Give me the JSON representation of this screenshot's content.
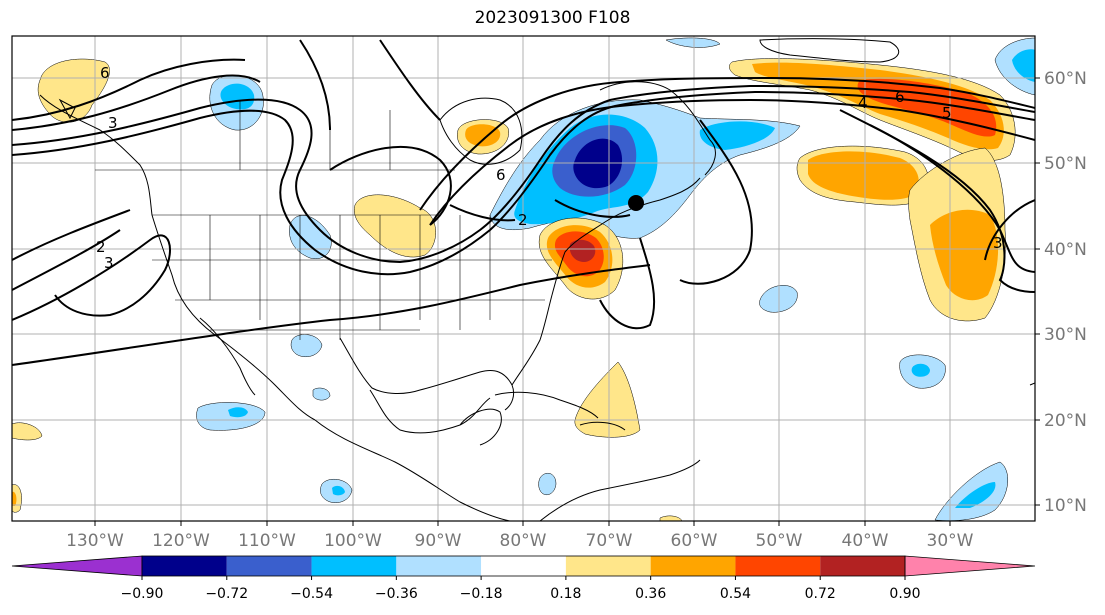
{
  "title": "2023091300 F108",
  "map": {
    "lon_labels": [
      "130°W",
      "120°W",
      "110°W",
      "100°W",
      "90°W",
      "80°W",
      "70°W",
      "60°W",
      "50°W",
      "40°W",
      "30°W"
    ],
    "lat_labels": [
      "60°N",
      "50°N",
      "40°N",
      "30°N",
      "20°N",
      "10°N"
    ],
    "lon_range": [
      -140,
      -20
    ],
    "lat_range": [
      8,
      65
    ],
    "grid": true
  },
  "colorbar": {
    "labels": [
      "−0.90",
      "−0.72",
      "−0.54",
      "−0.36",
      "−0.18",
      "0.18",
      "0.36",
      "0.54",
      "0.72",
      "0.90"
    ],
    "colors": [
      "#9b30d0",
      "#00008b",
      "#3a5fcd",
      "#00bfff",
      "#b0e0ff",
      "#ffffff",
      "#ffe68a",
      "#ffa500",
      "#ff4500",
      "#b22222",
      "#ff82ab"
    ],
    "extend": "both"
  },
  "contour_labels": [
    "6",
    "3",
    "2",
    "3",
    "6",
    "2",
    "6",
    "4",
    "5",
    "3"
  ],
  "marker": {
    "lon": -67,
    "lat": 45.5
  },
  "colors": {
    "grid": "#b0b0b0",
    "coast": "#000000",
    "contour": "#000000"
  }
}
